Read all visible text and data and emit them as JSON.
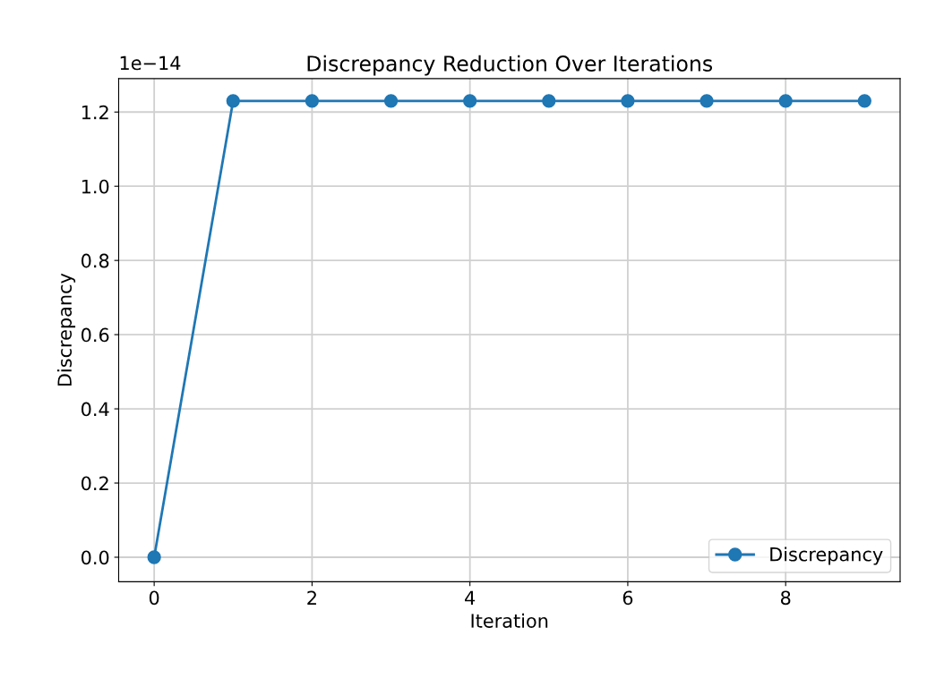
{
  "chart_data": {
    "type": "line",
    "title": "Discrepancy Reduction Over Iterations",
    "xlabel": "Iteration",
    "ylabel": "Discrepancy",
    "x": [
      0,
      1,
      2,
      3,
      4,
      5,
      6,
      7,
      8,
      9
    ],
    "series": [
      {
        "name": "Discrepancy",
        "color": "#1f77b4",
        "values": [
          0,
          1.23,
          1.23,
          1.23,
          1.23,
          1.23,
          1.23,
          1.23,
          1.23,
          1.23
        ]
      }
    ],
    "annotations": [
      "1e−14"
    ],
    "xlim": [
      -0.45,
      9.45
    ],
    "xticks": [
      0,
      2,
      4,
      6,
      8
    ],
    "ylim": [
      -0.066,
      1.29
    ],
    "yticks": [
      {
        "value": 0,
        "label": "0.0"
      },
      0.2,
      0.4,
      0.6,
      0.8,
      {
        "value": 1,
        "label": "1.0"
      },
      1.2
    ],
    "grid": true,
    "legend": "lower right",
    "marker": "circle",
    "line_style": "solid"
  }
}
